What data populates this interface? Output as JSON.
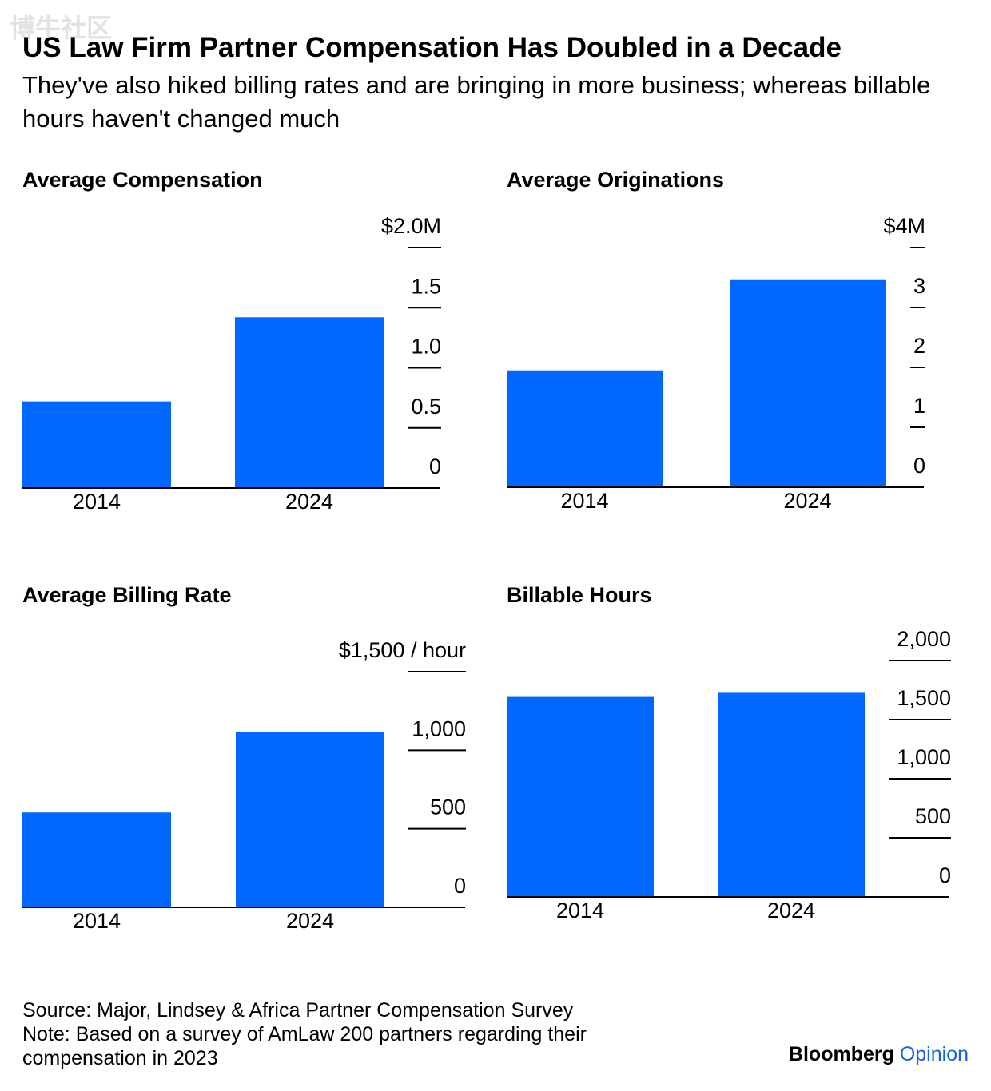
{
  "watermark": "博牛社区",
  "header": {
    "title": "US Law Firm Partner Compensation Has Doubled in a Decade",
    "subtitle": "They've also hiked billing rates and are bringing in more business; whereas billable hours haven't changed much"
  },
  "colors": {
    "bar": "#0068ff",
    "axis": "#000000",
    "brand_accent": "#1660e8"
  },
  "chart_data": [
    {
      "type": "bar",
      "title": "Average Compensation",
      "categories": [
        "2014",
        "2024"
      ],
      "values": [
        0.72,
        1.42
      ],
      "ylim": [
        0,
        2.0
      ],
      "ticks": [
        {
          "value": 0,
          "label": "0"
        },
        {
          "value": 0.5,
          "label": "0.5"
        },
        {
          "value": 1.0,
          "label": "1.0"
        },
        {
          "value": 1.5,
          "label": "1.5"
        },
        {
          "value": 2.0,
          "label": "$2.0M"
        }
      ],
      "xlabel": "",
      "ylabel": "",
      "grid": false,
      "axis_side": "right"
    },
    {
      "type": "bar",
      "title": "Average Originations",
      "categories": [
        "2014",
        "2024"
      ],
      "values": [
        1.95,
        3.47
      ],
      "ylim": [
        0,
        4
      ],
      "ticks": [
        {
          "value": 0,
          "label": "0"
        },
        {
          "value": 1,
          "label": "1"
        },
        {
          "value": 2,
          "label": "2"
        },
        {
          "value": 3,
          "label": "3"
        },
        {
          "value": 4,
          "label": "$4M"
        }
      ],
      "xlabel": "",
      "ylabel": "",
      "grid": false,
      "axis_side": "right"
    },
    {
      "type": "bar",
      "title": "Average Billing Rate",
      "categories": [
        "2014",
        "2024"
      ],
      "values": [
        604,
        1116
      ],
      "ylim": [
        0,
        1500
      ],
      "ticks": [
        {
          "value": 0,
          "label": "0"
        },
        {
          "value": 500,
          "label": "500"
        },
        {
          "value": 1000,
          "label": "1,000"
        },
        {
          "value": 1500,
          "label": "$1,500 / hour"
        }
      ],
      "xlabel": "",
      "ylabel": "",
      "grid": false,
      "axis_side": "right"
    },
    {
      "type": "bar",
      "title": "Billable Hours",
      "categories": [
        "2014",
        "2024"
      ],
      "values": [
        1692,
        1727
      ],
      "ylim": [
        0,
        2000
      ],
      "ticks": [
        {
          "value": 0,
          "label": "0"
        },
        {
          "value": 500,
          "label": "500"
        },
        {
          "value": 1000,
          "label": "1,000"
        },
        {
          "value": 1500,
          "label": "1,500"
        },
        {
          "value": 2000,
          "label": "2,000"
        }
      ],
      "xlabel": "",
      "ylabel": "",
      "grid": false,
      "axis_side": "right"
    }
  ],
  "footer": {
    "source": "Source: Major, Lindsey & Africa Partner Compensation Survey",
    "note_line1": "Note: Based on a survey of AmLaw 200 partners regarding their",
    "note_line2": "compensation in 2023"
  },
  "brand": {
    "part1": "Bloomberg",
    "part2": "Opinion"
  }
}
